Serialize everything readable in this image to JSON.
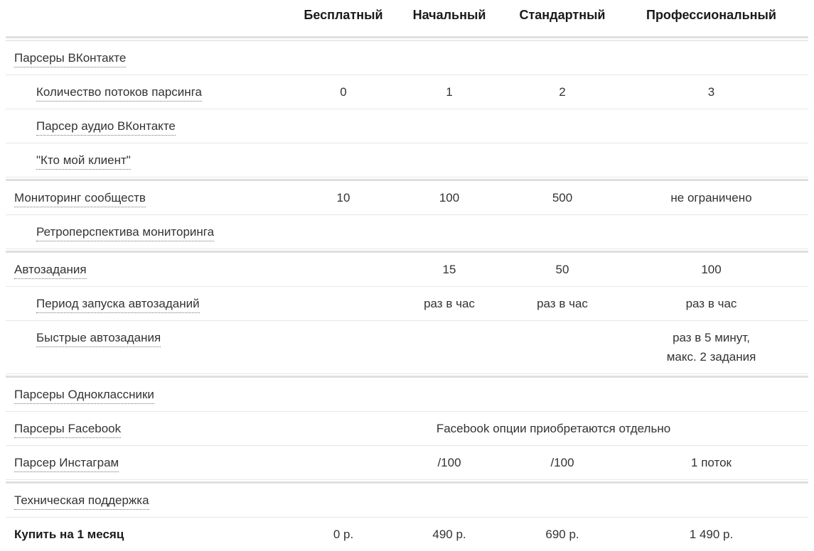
{
  "table": {
    "plans": [
      "Бесплатный",
      "Начальный",
      "Стандартный",
      "Профессиональный"
    ],
    "rows": [
      {
        "type": "section",
        "label": "Парсеры ВКонтакте",
        "values": [
          "",
          "",
          "",
          ""
        ]
      },
      {
        "type": "sub",
        "label": "Количество потоков парсинга",
        "values": [
          "0",
          "1",
          "2",
          "3"
        ]
      },
      {
        "type": "sub",
        "label": "Парсер аудио ВКонтакте",
        "values": [
          "",
          "",
          "",
          ""
        ]
      },
      {
        "type": "sub",
        "label": "\"Кто мой клиент\"",
        "values": [
          "",
          "",
          "",
          ""
        ]
      },
      {
        "type": "section",
        "separator": "thick",
        "label": "Мониторинг сообществ",
        "values": [
          "10",
          "100",
          "500",
          "не ограничено"
        ]
      },
      {
        "type": "sub",
        "label": "Ретроперспектива мониторинга",
        "values": [
          "",
          "",
          "",
          ""
        ]
      },
      {
        "type": "section",
        "separator": "thick",
        "label": "Автозадания",
        "values": [
          "",
          "15",
          "50",
          "100"
        ]
      },
      {
        "type": "sub",
        "label": "Период запуска автозаданий",
        "values": [
          "",
          "раз в час",
          "раз в час",
          "раз в час"
        ]
      },
      {
        "type": "sub",
        "label": "Быстрые автозадания",
        "values": [
          "",
          "",
          "",
          "раз в 5 минут,\nмакс. 2 задания"
        ]
      },
      {
        "type": "section",
        "separator": "thick",
        "label": "Парсеры Одноклассники",
        "values": [
          "",
          "",
          "",
          ""
        ]
      },
      {
        "type": "section",
        "label": "Парсеры Facebook",
        "span_value": "Facebook опции приобретаются отдельно"
      },
      {
        "type": "section",
        "label": "Парсер Инстаграм",
        "values": [
          "",
          "/100",
          "/100",
          "1 поток"
        ]
      },
      {
        "type": "section",
        "separator": "thick",
        "label": "Техническая поддержка",
        "values": [
          "",
          "",
          "",
          ""
        ]
      },
      {
        "type": "buy",
        "label": "Купить на 1 месяц",
        "values": [
          "0 р.",
          "490 р.",
          "690 р.",
          "1 490 р."
        ]
      }
    ]
  },
  "colors": {
    "text": "#333333",
    "header_text": "#1a1a1a",
    "border_thin": "#e7e7e7",
    "border_thick": "#dfdfdf",
    "dotted_underline": "#767676"
  }
}
